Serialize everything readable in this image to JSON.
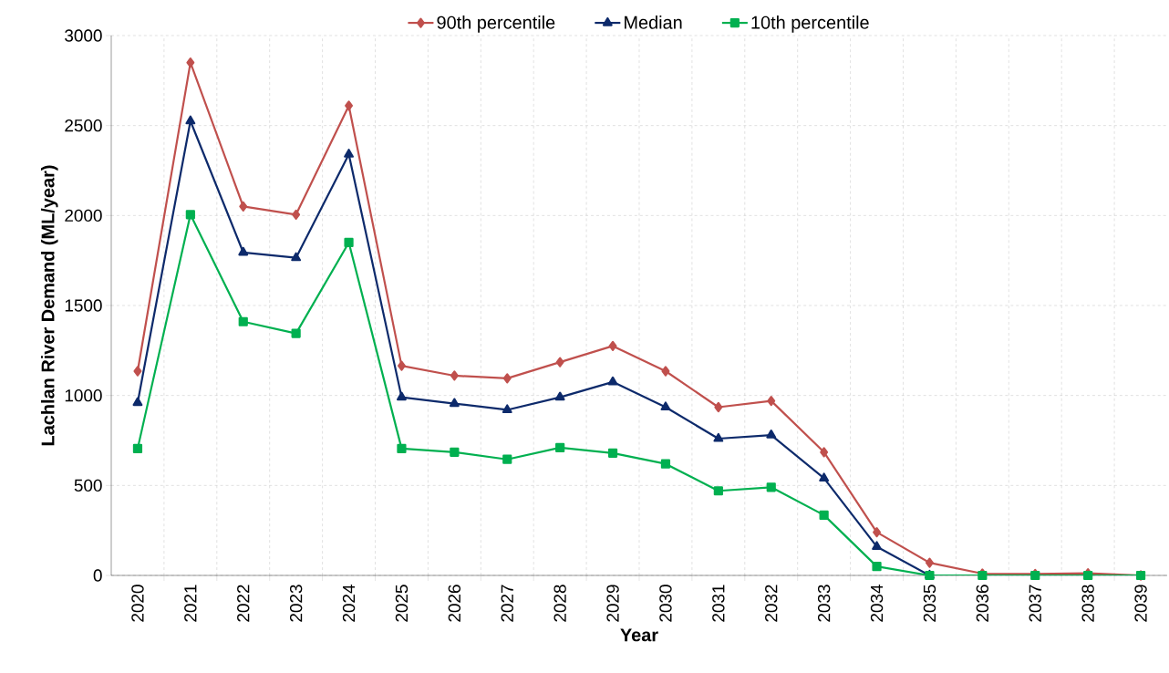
{
  "chart_data": {
    "type": "line",
    "xlabel": "Year",
    "ylabel": "Lachlan River Demand (ML/year)",
    "categories": [
      "2020",
      "2021",
      "2022",
      "2023",
      "2024",
      "2025",
      "2026",
      "2027",
      "2028",
      "2029",
      "2030",
      "2031",
      "2032",
      "2033",
      "2034",
      "2035",
      "2036",
      "2037",
      "2038",
      "2039"
    ],
    "series": [
      {
        "name": "90th percentile",
        "color": "#c0504d",
        "marker": "diamond",
        "values": [
          1135,
          2850,
          2050,
          2005,
          2610,
          1165,
          1110,
          1095,
          1185,
          1275,
          1135,
          935,
          970,
          685,
          240,
          70,
          10,
          8,
          12,
          0
        ]
      },
      {
        "name": "Median",
        "color": "#0d2a6b",
        "marker": "triangle",
        "values": [
          960,
          2525,
          1795,
          1765,
          2340,
          990,
          955,
          920,
          990,
          1075,
          935,
          760,
          780,
          540,
          160,
          0,
          null,
          null,
          null,
          null
        ]
      },
      {
        "name": "10th percentile",
        "color": "#00b050",
        "marker": "square",
        "values": [
          705,
          2005,
          1410,
          1345,
          1850,
          705,
          685,
          645,
          710,
          680,
          620,
          470,
          490,
          335,
          50,
          0,
          0,
          0,
          0,
          0
        ]
      }
    ],
    "ylim": [
      0,
      3000
    ],
    "yticks": [
      0,
      500,
      1000,
      1500,
      2000,
      2500,
      3000
    ],
    "grid": true,
    "legend": "top",
    "line_style": "solid"
  }
}
